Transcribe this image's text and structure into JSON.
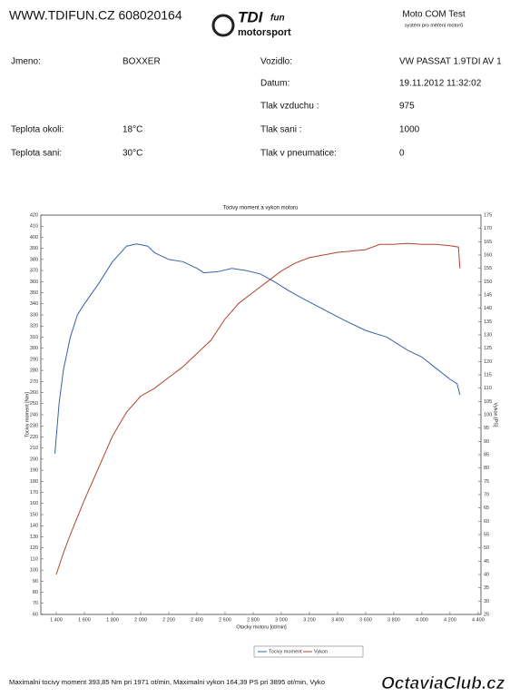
{
  "header": {
    "website": "WWW.TDIFUN.CZ 608020164",
    "logo_main": "TDI",
    "logo_fun": "fun",
    "logo_sub": "motorsport",
    "test_name": "Moto COM Test",
    "test_subtitle": "systém pro měření motorů"
  },
  "fields_left": [
    {
      "label": "Jmeno:",
      "value": "BOXXER"
    },
    {
      "label": "Teplota okoli:",
      "value": "18°C"
    },
    {
      "label": "Teplota sani:",
      "value": "30°C"
    }
  ],
  "fields_right": [
    {
      "label": "Vozidlo:",
      "value": "VW PASSAT 1.9TDI AV 1"
    },
    {
      "label": "Datum:",
      "value": "19.11.2012 11:32:02"
    },
    {
      "label": "Tlak vzduchu :",
      "value": "975"
    },
    {
      "label": "Tlak sani :",
      "value": "1000"
    },
    {
      "label": "Tlak v pneumatice:",
      "value": "0"
    }
  ],
  "chart_data": {
    "type": "line",
    "title": "Tocivy moment a vykon motoru",
    "x_label": "Otacky motoru [ot/min]",
    "y_label": "Tocivy moment [Nm]",
    "y2_label": "Vykon [PS]",
    "xlim": [
      1290,
      4420
    ],
    "ylim": [
      60,
      420
    ],
    "y2lim": [
      25,
      175
    ],
    "xticks": [
      {
        "value": 1400,
        "label": "1 400"
      },
      {
        "value": 1600,
        "label": "1 600"
      },
      {
        "value": 1800,
        "label": "1 800"
      },
      {
        "value": 2000,
        "label": "2 000"
      },
      {
        "value": 2200,
        "label": "2 200"
      },
      {
        "value": 2400,
        "label": "2 400"
      },
      {
        "value": 2600,
        "label": "2 600"
      },
      {
        "value": 2800,
        "label": "2 800"
      },
      {
        "value": 3000,
        "label": "3 000"
      },
      {
        "value": 3200,
        "label": "3 200"
      },
      {
        "value": 3400,
        "label": "3 400"
      },
      {
        "value": 3600,
        "label": "3 600"
      },
      {
        "value": 3800,
        "label": "3 800"
      },
      {
        "value": 4000,
        "label": "4 000"
      },
      {
        "value": 4200,
        "label": "4 200"
      },
      {
        "value": 4400,
        "label": "4 400"
      }
    ],
    "yticks": [
      60,
      70,
      80,
      90,
      100,
      110,
      120,
      130,
      140,
      150,
      160,
      170,
      180,
      190,
      200,
      210,
      220,
      230,
      240,
      250,
      260,
      270,
      280,
      290,
      300,
      310,
      320,
      330,
      340,
      350,
      360,
      370,
      380,
      390,
      400,
      410,
      420
    ],
    "y2ticks": [
      25,
      30,
      35,
      40,
      45,
      50,
      55,
      60,
      65,
      70,
      75,
      80,
      85,
      90,
      95,
      100,
      105,
      110,
      115,
      120,
      125,
      130,
      135,
      140,
      145,
      150,
      155,
      160,
      165,
      170,
      175
    ],
    "series": [
      {
        "name": "Tocivy moment",
        "color": "#3a5fa8",
        "x": [
          1390,
          1420,
          1450,
          1500,
          1550,
          1600,
          1700,
          1800,
          1900,
          1971,
          2050,
          2100,
          2200,
          2300,
          2400,
          2450,
          2550,
          2650,
          2750,
          2850,
          2950,
          3050,
          3150,
          3300,
          3450,
          3600,
          3750,
          3900,
          4000,
          4100,
          4200,
          4250,
          4270
        ],
        "values": [
          205,
          250,
          280,
          310,
          330,
          340,
          358,
          378,
          392,
          394,
          392,
          386,
          380,
          378,
          372,
          368,
          369,
          372,
          370,
          367,
          360,
          352,
          345,
          335,
          325,
          316,
          310,
          298,
          292,
          282,
          272,
          268,
          258
        ]
      },
      {
        "name": "Vykon",
        "color": "#b0452e",
        "axis": "y2",
        "x": [
          1400,
          1450,
          1500,
          1600,
          1700,
          1800,
          1900,
          2000,
          2100,
          2200,
          2300,
          2400,
          2500,
          2600,
          2700,
          2800,
          2900,
          3000,
          3100,
          3200,
          3400,
          3600,
          3700,
          3800,
          3895,
          4000,
          4100,
          4200,
          4260,
          4270
        ],
        "values": [
          40,
          48,
          55,
          68,
          80,
          92,
          101,
          107,
          110,
          114,
          118,
          123,
          128,
          136,
          142,
          146,
          150,
          154,
          157,
          159,
          161,
          162,
          164,
          164,
          164.4,
          164,
          164,
          163.5,
          163,
          155
        ]
      }
    ]
  },
  "footer": {
    "summary": "Maximalni tocivy moment 393,85 Nm pri 1971 ot/min,  Maximalni vykon 164,39 PS pri 3895 ot/min,  Vyko",
    "watermark": "OctaviaClub.cz"
  }
}
